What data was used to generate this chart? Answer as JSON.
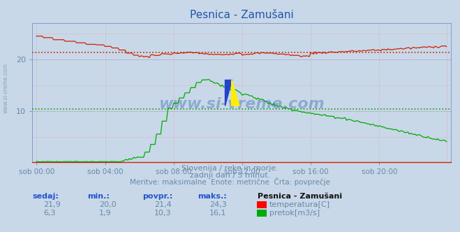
{
  "title": "Pesnica - Zamušani",
  "background_color": "#c8d8e8",
  "plot_bg_color": "#c8d8e8",
  "grid_color_v": "#e8a0a0",
  "grid_color_h_pink": "#e8a0a0",
  "grid_color_h_blue": "#8888cc",
  "xlabel_color": "#6688aa",
  "text_color": "#6688aa",
  "temp_color": "#cc2200",
  "flow_color": "#00aa00",
  "temp_avg": 21.4,
  "flow_avg": 10.3,
  "temp_min": 20.0,
  "temp_max": 24.3,
  "flow_min": 1.9,
  "flow_max": 16.1,
  "temp_sedaj": 21.9,
  "flow_sedaj": 6.3,
  "ylim": [
    0,
    27
  ],
  "yticks": [
    10,
    20
  ],
  "subtitle1": "Slovenija / reke in morje.",
  "subtitle2": "zadnji dan / 5 minut.",
  "subtitle3": "Meritve: maksimalne  Enote: metrične  Črta: povprečje",
  "watermark": "www.si-vreme.com",
  "xtick_labels": [
    "sob 00:00",
    "sob 04:00",
    "sob 08:00",
    "sob 12:00",
    "sob 16:00",
    "sob 20:00"
  ],
  "title_color": "#2255aa",
  "spine_color": "#8899cc",
  "bottom_spine_color": "#cc2200"
}
